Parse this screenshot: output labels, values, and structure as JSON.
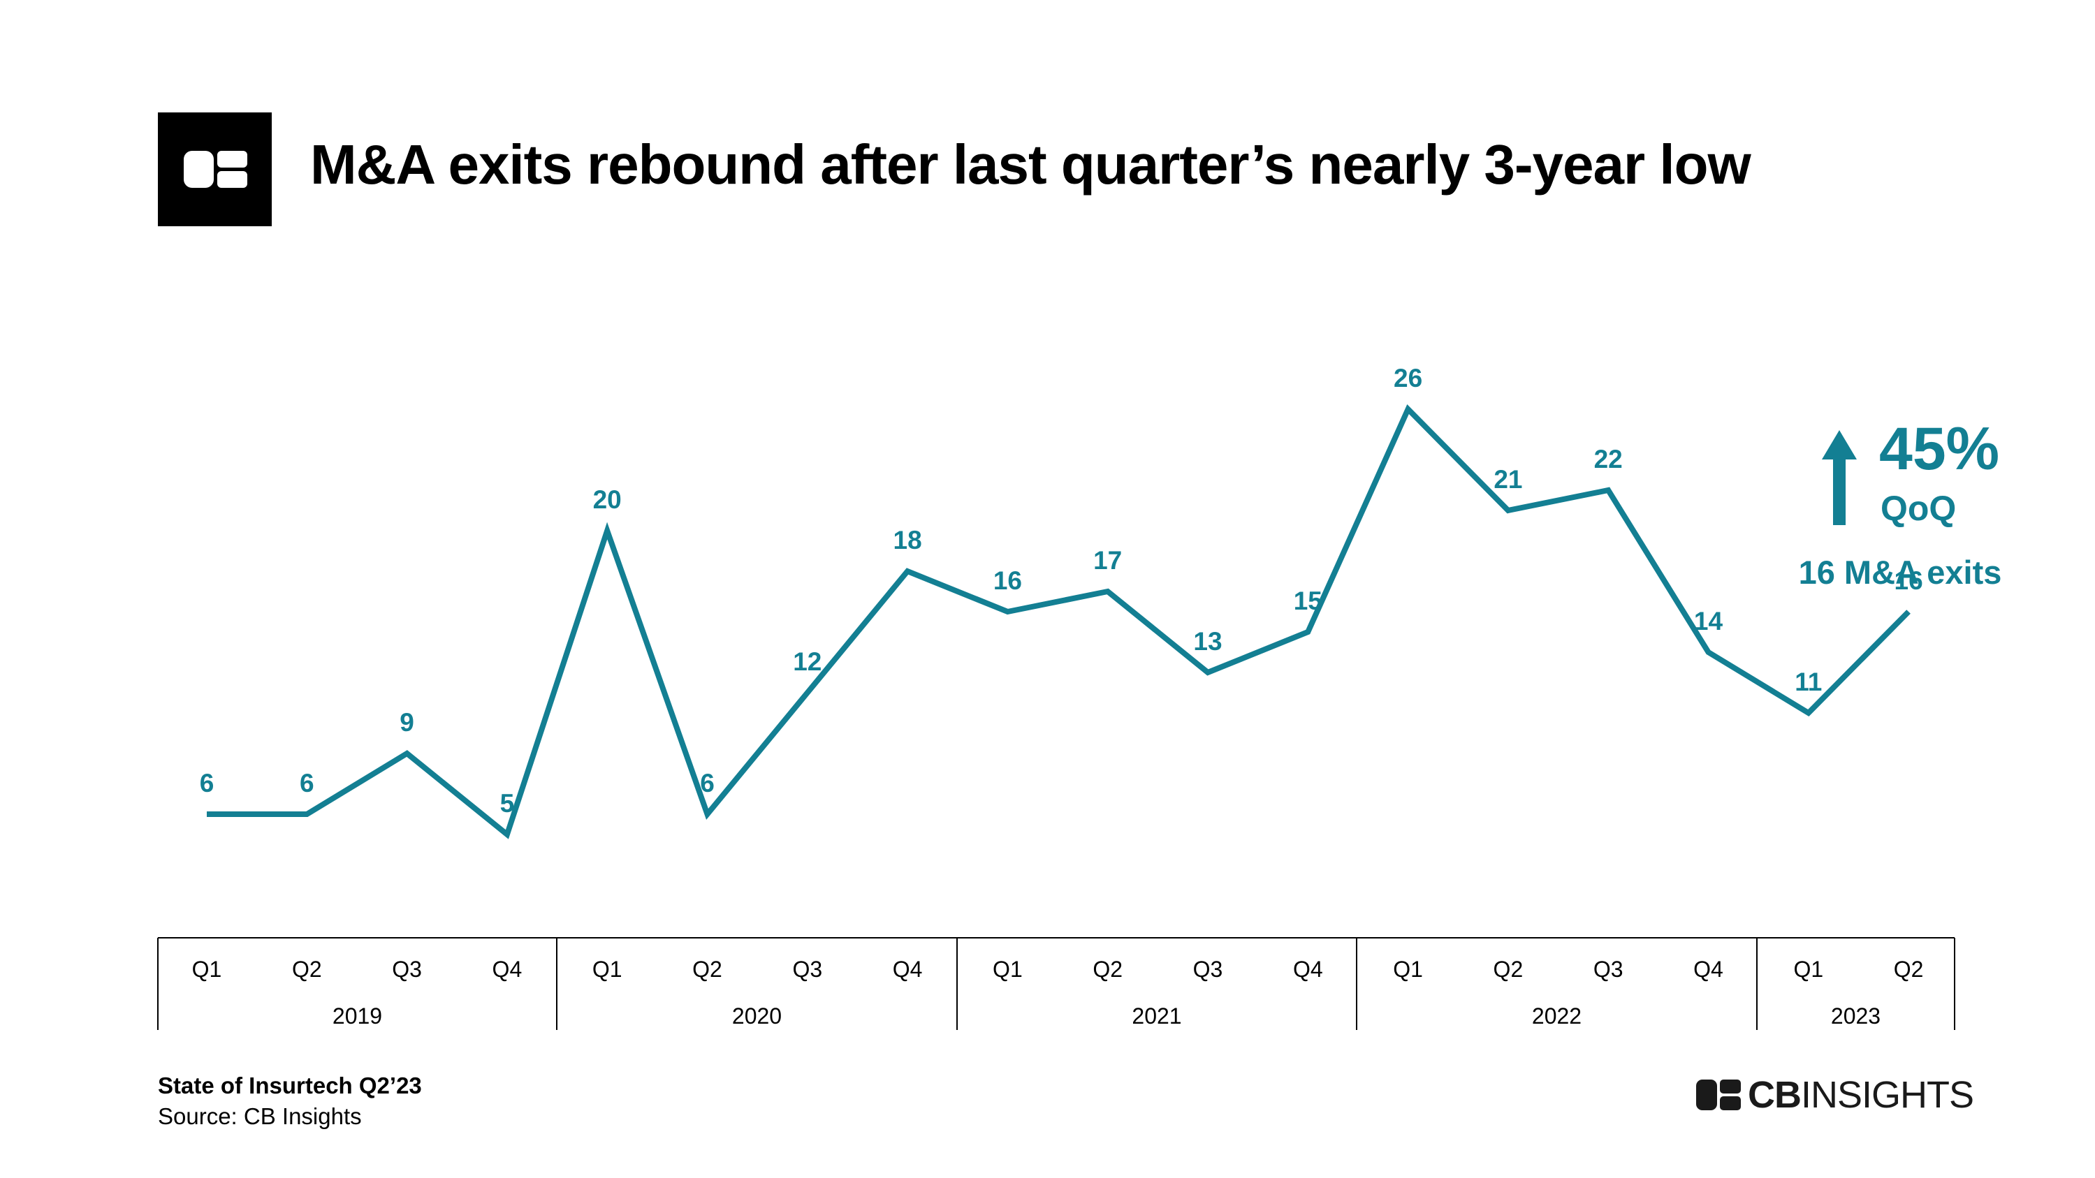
{
  "header": {
    "logo_icon": "cb-logo-icon",
    "title": "M&A exits rebound after last quarter’s nearly 3-year low"
  },
  "chart_data": {
    "type": "line",
    "x": [
      "Q1 2019",
      "Q2 2019",
      "Q3 2019",
      "Q4 2019",
      "Q1 2020",
      "Q2 2020",
      "Q3 2020",
      "Q4 2020",
      "Q1 2021",
      "Q2 2021",
      "Q3 2021",
      "Q4 2021",
      "Q1 2022",
      "Q2 2022",
      "Q3 2022",
      "Q4 2022",
      "Q1 2023",
      "Q2 2023"
    ],
    "quarter_labels": [
      "Q1",
      "Q2",
      "Q3",
      "Q4",
      "Q1",
      "Q2",
      "Q3",
      "Q4",
      "Q1",
      "Q2",
      "Q3",
      "Q4",
      "Q1",
      "Q2",
      "Q3",
      "Q4",
      "Q1",
      "Q2"
    ],
    "years": [
      "2019",
      "2020",
      "2021",
      "2022",
      "2023"
    ],
    "values": [
      6,
      6,
      9,
      5,
      20,
      6,
      12,
      18,
      16,
      17,
      13,
      15,
      26,
      21,
      22,
      14,
      11,
      16
    ],
    "line_color": "#137f93",
    "annotation": {
      "arrow_icon": "up-arrow-icon",
      "percent": "45%",
      "period": "QoQ",
      "detail": "16 M&A exits"
    }
  },
  "footer": {
    "report": "State of Insurtech Q2’23",
    "source": "Source: CB Insights",
    "brand_bold": "CB",
    "brand_light": "INSIGHTS"
  }
}
